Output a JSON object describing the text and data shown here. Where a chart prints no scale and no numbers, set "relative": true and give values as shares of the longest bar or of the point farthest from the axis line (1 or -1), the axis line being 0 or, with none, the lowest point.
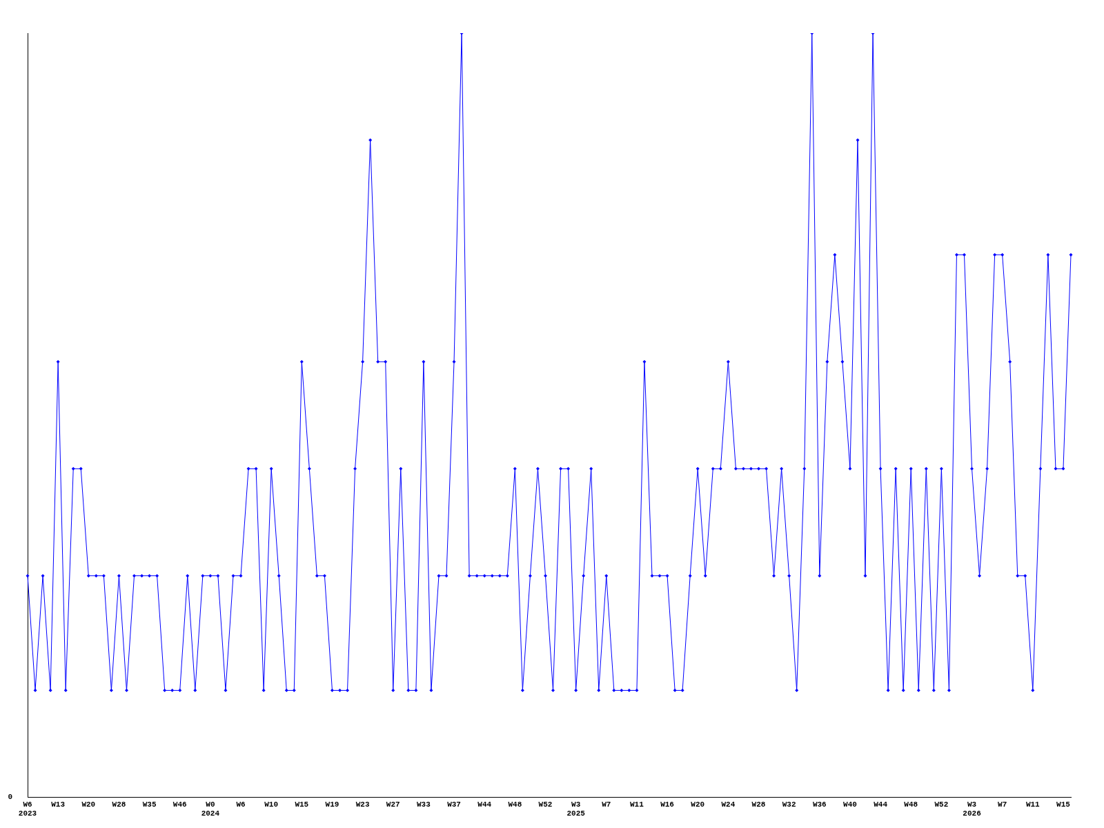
{
  "chart_data": {
    "type": "line",
    "relative": true,
    "grid": false,
    "legend": false,
    "marker": "diamond",
    "line_style": "solid",
    "annotations": [
      "0"
    ],
    "categories": [
      "W6\n2023",
      null,
      null,
      null,
      "W13",
      null,
      null,
      null,
      "W20",
      null,
      null,
      null,
      "W28",
      null,
      null,
      null,
      "W35",
      null,
      null,
      null,
      "W46",
      null,
      null,
      null,
      "W0\n2024",
      null,
      null,
      null,
      "W6",
      null,
      null,
      null,
      "W10",
      null,
      null,
      null,
      "W15",
      null,
      null,
      null,
      "W19",
      null,
      null,
      null,
      "W23",
      null,
      null,
      null,
      "W27",
      null,
      null,
      null,
      "W33",
      null,
      null,
      null,
      "W37",
      null,
      null,
      null,
      "W44",
      null,
      null,
      null,
      "W48",
      null,
      null,
      null,
      "W52",
      null,
      null,
      null,
      "W3\n2025",
      null,
      null,
      null,
      "W7",
      null,
      null,
      null,
      "W11",
      null,
      null,
      null,
      "W16",
      null,
      null,
      null,
      "W20",
      null,
      null,
      null,
      "W24",
      null,
      null,
      null,
      "W28",
      null,
      null,
      null,
      "W32",
      null,
      null,
      null,
      "W36",
      null,
      null,
      null,
      "W40",
      null,
      null,
      null,
      "W44",
      null,
      null,
      null,
      "W48",
      null,
      null,
      null,
      "W52",
      null,
      null,
      null,
      "W3\n2026",
      null,
      null,
      null,
      "W7",
      null,
      null,
      null,
      "W11",
      null,
      null,
      null,
      "W15",
      null
    ],
    "series": [
      {
        "color": "#0000ff",
        "values": [
          0.29,
          0.14,
          0.29,
          0.14,
          0.57,
          0.14,
          0.43,
          0.43,
          0.29,
          0.29,
          0.29,
          0.14,
          0.29,
          0.14,
          0.29,
          0.29,
          0.29,
          0.29,
          0.14,
          0.14,
          0.14,
          0.29,
          0.14,
          0.29,
          0.29,
          0.29,
          0.14,
          0.29,
          0.29,
          0.43,
          0.43,
          0.14,
          0.43,
          0.29,
          0.14,
          0.14,
          0.57,
          0.43,
          0.29,
          0.29,
          0.14,
          0.14,
          0.14,
          0.43,
          0.57,
          0.86,
          0.57,
          0.57,
          0.14,
          0.43,
          0.14,
          0.14,
          0.57,
          0.14,
          0.29,
          0.29,
          0.57,
          1,
          0.29,
          0.29,
          0.29,
          0.29,
          0.29,
          0.29,
          0.43,
          0.14,
          0.29,
          0.43,
          0.29,
          0.14,
          0.43,
          0.43,
          0.14,
          0.29,
          0.43,
          0.14,
          0.29,
          0.14,
          0.14,
          0.14,
          0.14,
          0.57,
          0.29,
          0.29,
          0.29,
          0.14,
          0.14,
          0.29,
          0.43,
          0.29,
          0.43,
          0.43,
          0.57,
          0.43,
          0.43,
          0.43,
          0.43,
          0.43,
          0.29,
          0.43,
          0.29,
          0.14,
          0.43,
          1,
          0.29,
          0.57,
          0.71,
          0.57,
          0.43,
          0.86,
          0.29,
          1,
          0.43,
          0.14,
          0.43,
          0.14,
          0.43,
          0.14,
          0.43,
          0.14,
          0.43,
          0.14,
          0.71,
          0.71,
          0.43,
          0.29,
          0.43,
          0.71,
          0.71,
          0.57,
          0.29,
          0.29,
          0.14,
          0.43,
          0.71,
          0.43,
          0.43,
          0.71
        ]
      }
    ]
  }
}
